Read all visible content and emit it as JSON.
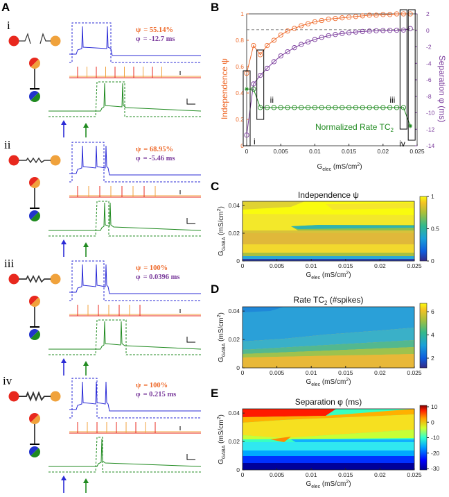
{
  "panel_letters": {
    "A": "A",
    "B": "B",
    "C": "C",
    "D": "D",
    "E": "E"
  },
  "colors": {
    "blue": "#2b2bd6",
    "red": "#e8281e",
    "orange": "#f0a23c",
    "green": "#1f8a1f",
    "psi": "#ee6a2b",
    "phi": "#7a3b9c",
    "black": "#000000"
  },
  "panel_a": {
    "conditions": [
      {
        "roman": "i",
        "psi_label": "ψ",
        "psi_value": "= 55.14%",
        "phi_label": "φ",
        "phi_value": "= -12.7 ms",
        "blue_spikes": 2,
        "red_spikes": 10,
        "green_spikes": 2
      },
      {
        "roman": "ii",
        "psi_label": "ψ",
        "psi_value": "= 68.95%",
        "phi_label": "φ",
        "phi_value": "= -5.46 ms",
        "blue_spikes": 3,
        "red_spikes": 8,
        "green_spikes": 2
      },
      {
        "roman": "iii",
        "psi_label": "ψ",
        "psi_value": "= 100%",
        "phi_label": "φ",
        "phi_value": "= 0.0396 ms",
        "blue_spikes": 3,
        "red_spikes": 7,
        "green_spikes": 2
      },
      {
        "roman": "iv",
        "psi_label": "ψ",
        "psi_value": "= 100%",
        "phi_label": "φ",
        "phi_value": "= 0.215 ms",
        "blue_spikes": 3,
        "red_spikes": 9,
        "green_spikes": 1
      }
    ]
  },
  "chart_data": [
    {
      "id": "B",
      "type": "line",
      "xlabel": "G_elec (mS/cm^2)",
      "ylabel_left": "Independence ψ",
      "ylabel_right": "Separation φ (ms)",
      "xlim": [
        0,
        0.025
      ],
      "ylim_left": [
        0,
        1
      ],
      "ylim_right": [
        -14,
        2
      ],
      "xticks": [
        "0",
        "0.005",
        "0.01",
        "0.015",
        "0.02",
        "0.025"
      ],
      "yticks_left": [
        "0",
        "0.2",
        "0.4",
        "0.6",
        "0.8",
        "1"
      ],
      "yticks_right": [
        "-14",
        "-12",
        "-10",
        "-8",
        "-6",
        "-4",
        "-2",
        "0",
        "2"
      ],
      "dashed_reference_left": 0.88,
      "x": [
        0,
        0.001,
        0.002,
        0.003,
        0.004,
        0.005,
        0.006,
        0.007,
        0.008,
        0.009,
        0.01,
        0.011,
        0.012,
        0.013,
        0.014,
        0.015,
        0.016,
        0.017,
        0.018,
        0.019,
        0.02,
        0.021,
        0.022,
        0.023,
        0.024
      ],
      "series": [
        {
          "name": "Independence ψ",
          "axis": "left",
          "color": "#ee6a2b",
          "values": [
            0.55,
            0.76,
            0.69,
            0.76,
            0.8,
            0.84,
            0.87,
            0.89,
            0.91,
            0.925,
            0.94,
            0.95,
            0.96,
            0.965,
            0.97,
            0.975,
            0.98,
            0.985,
            0.99,
            0.99,
            0.995,
            0.995,
            1.0,
            1.0,
            1.0
          ]
        },
        {
          "name": "Separation φ",
          "axis": "right",
          "color": "#7a3b9c",
          "values": [
            -12.7,
            -6.5,
            -5.46,
            -4.6,
            -3.8,
            -3.1,
            -2.6,
            -2.1,
            -1.7,
            -1.4,
            -1.1,
            -0.85,
            -0.65,
            -0.5,
            -0.38,
            -0.28,
            -0.2,
            -0.14,
            -0.09,
            -0.05,
            -0.02,
            0.0,
            0.02,
            0.04,
            0.215
          ]
        },
        {
          "name": "Normalized Rate TC2",
          "axis": "left",
          "color": "#1f8a1f",
          "values": [
            0.43,
            0.43,
            0.29,
            0.29,
            0.29,
            0.29,
            0.29,
            0.29,
            0.29,
            0.29,
            0.29,
            0.29,
            0.29,
            0.29,
            0.29,
            0.29,
            0.29,
            0.29,
            0.29,
            0.29,
            0.29,
            0.29,
            0.29,
            0.29,
            0.15
          ]
        }
      ],
      "labels": {
        "rate": "Normalized Rate TC",
        "rate_sub": "2",
        "box_i": "i",
        "box_ii": "ii",
        "box_iii": "iii",
        "box_iv": "iv"
      }
    },
    {
      "id": "C",
      "type": "heatmap",
      "title": "Independence ψ",
      "xlabel": "G_elec (mS/cm^2)",
      "ylabel": "G_GABA (mS/cm^2)",
      "xticks": [
        "0",
        "0.005",
        "0.01",
        "0.015",
        "0.02",
        "0.025"
      ],
      "yticks": [
        "0",
        "0.02",
        "0.04"
      ],
      "colorbar_ticks": [
        "0",
        "0.5",
        "1"
      ],
      "colormap": "parula",
      "range": [
        0,
        1
      ]
    },
    {
      "id": "D",
      "type": "heatmap",
      "title": "Rate TC",
      "title_sub": "2",
      "title_suffix": " (#spikes)",
      "xlabel": "G_elec (mS/cm^2)",
      "ylabel": "G_GABA (mS/cm^2)",
      "xticks": [
        "0",
        "0.005",
        "0.01",
        "0.015",
        "0.02",
        "0.025"
      ],
      "yticks": [
        "0",
        "0.02",
        "0.04"
      ],
      "colorbar_ticks": [
        "2",
        "4",
        "6"
      ],
      "colormap": "parula",
      "range": [
        1,
        7
      ]
    },
    {
      "id": "E",
      "type": "heatmap",
      "title": "Separation φ (ms)",
      "xlabel": "G_elec (mS/cm^2)",
      "ylabel": "G_GABA (mS/cm^2)",
      "xticks": [
        "0",
        "0.005",
        "0.01",
        "0.015",
        "0.02",
        "0.025"
      ],
      "yticks": [
        "0",
        "0.02",
        "0.04"
      ],
      "colorbar_ticks": [
        "10",
        "0",
        "-10",
        "-20",
        "-30"
      ],
      "colormap": "jet",
      "range": [
        -35,
        10
      ]
    }
  ]
}
